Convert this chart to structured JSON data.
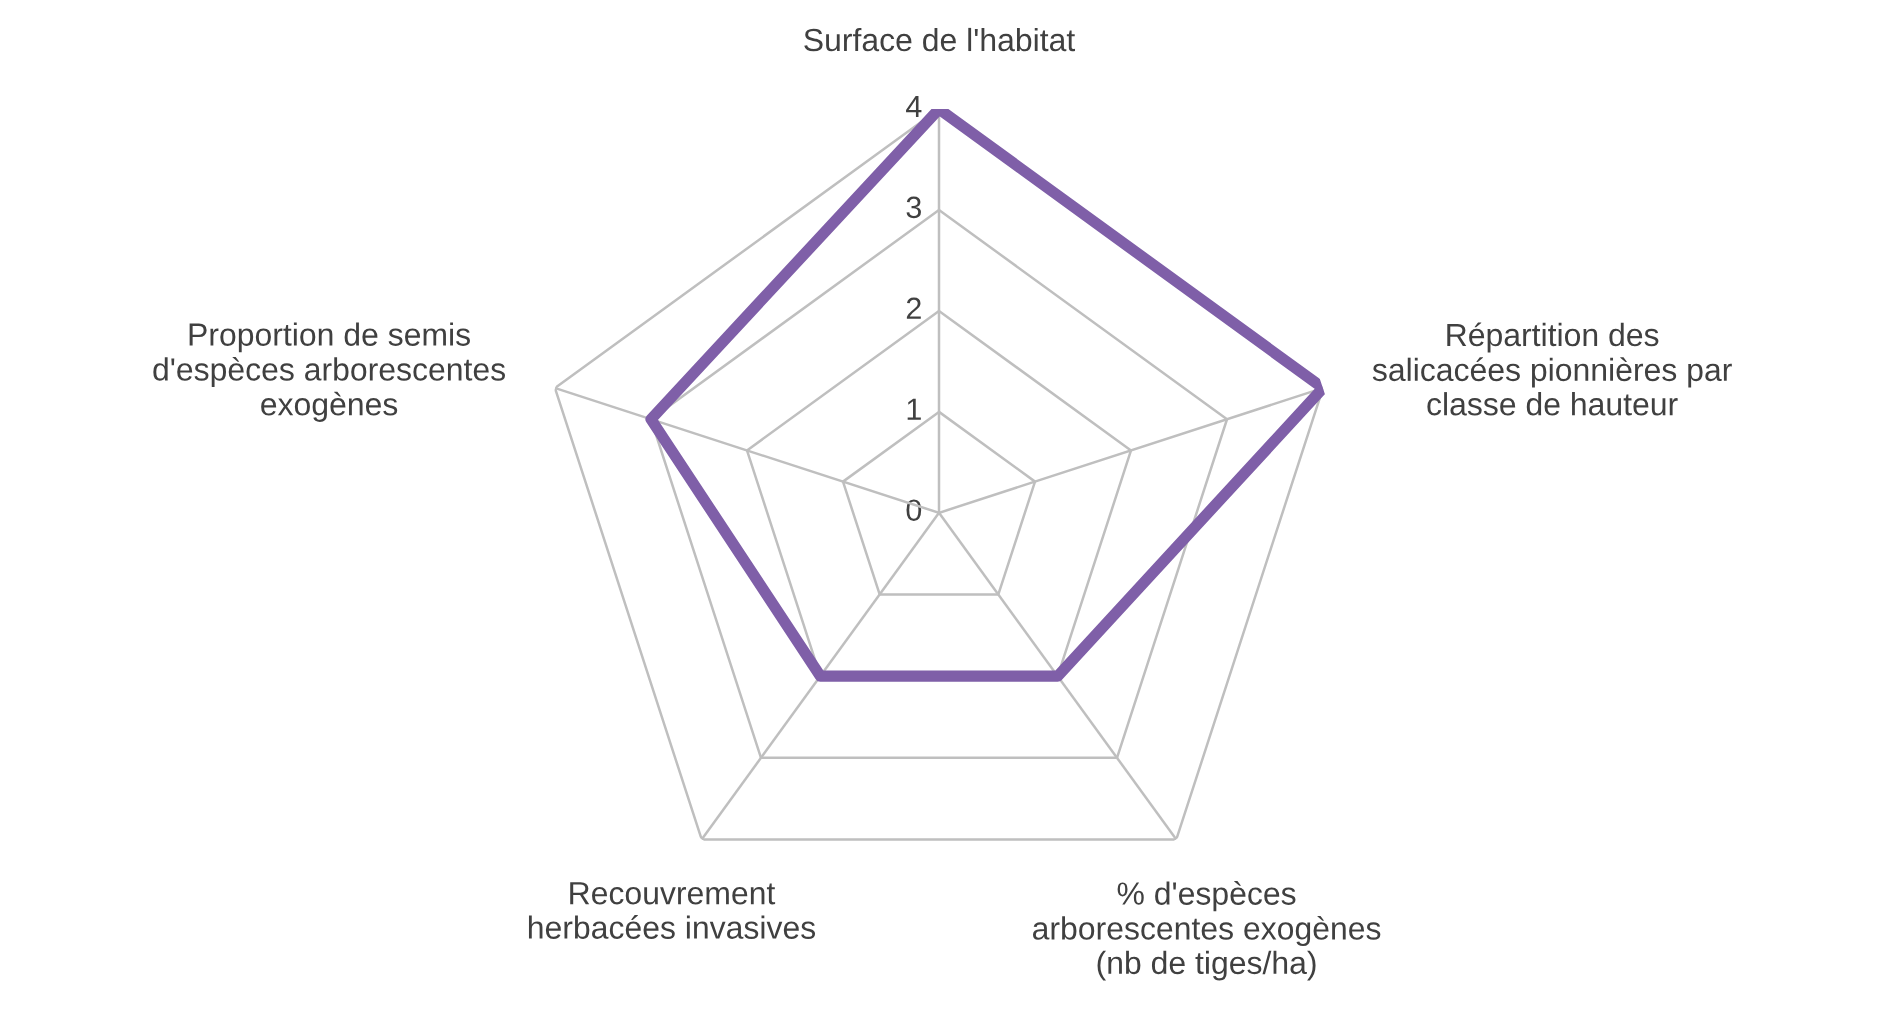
{
  "chart_data": {
    "type": "radar",
    "categories": [
      "Surface de l'habitat",
      "Répartition des\nsalicacées pionnières par\nclasse de hauteur",
      "% d'espèces\narborescentes exogènes\n(nb de tiges/ha)",
      "Recouvrement\nherbacées invasives",
      "Proportion de semis\nd'espèces arborescentes\nexogènes"
    ],
    "series": [
      {
        "color": "#7f5fa8",
        "values": [
          4,
          4,
          2,
          2,
          3
        ]
      }
    ],
    "ylim": [
      0,
      4
    ],
    "yticks": [
      0,
      1,
      2,
      3,
      4
    ],
    "grid": true,
    "marker": "none",
    "line_style": "solid"
  }
}
